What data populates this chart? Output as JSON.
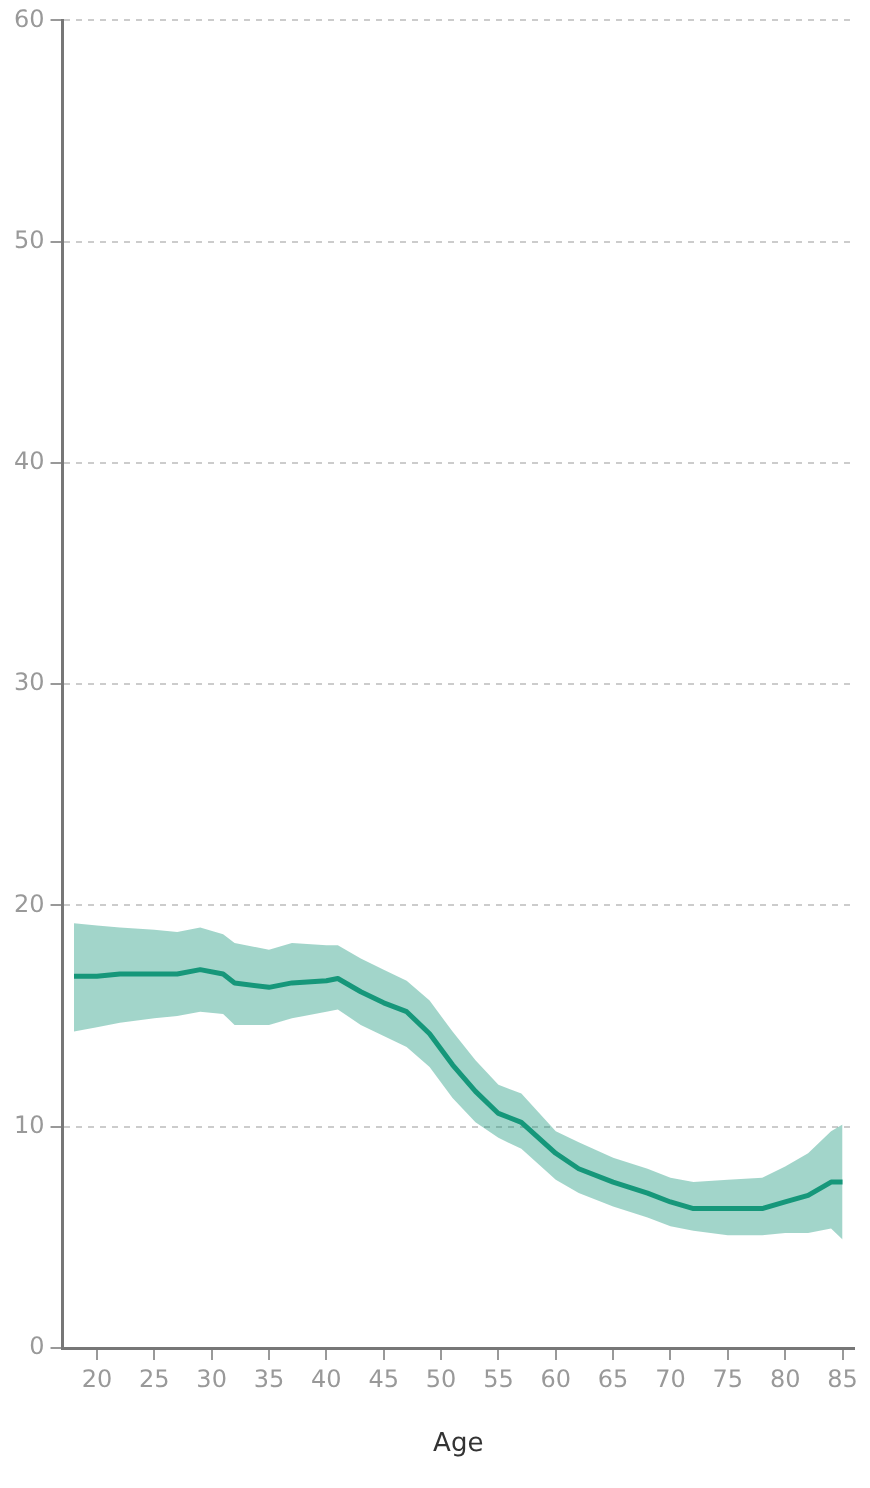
{
  "chart_data": {
    "type": "line",
    "xlabel": "Age",
    "x": [
      18,
      20,
      22,
      25,
      27,
      29,
      31,
      32,
      35,
      37,
      40,
      41,
      43,
      45,
      47,
      49,
      51,
      53,
      55,
      57,
      60,
      62,
      65,
      68,
      70,
      72,
      75,
      78,
      80,
      82,
      84,
      85
    ],
    "series": [
      {
        "color": "#16977a",
        "values": [
          16.8,
          16.8,
          16.9,
          16.9,
          16.9,
          17.1,
          16.9,
          16.5,
          16.3,
          16.5,
          16.6,
          16.7,
          16.1,
          15.6,
          15.2,
          14.2,
          12.8,
          11.6,
          10.6,
          10.2,
          8.8,
          8.1,
          7.5,
          7.0,
          6.6,
          6.3,
          6.3,
          6.3,
          6.6,
          6.9,
          7.5,
          7.5
        ],
        "lower": [
          14.3,
          14.5,
          14.7,
          14.9,
          15.0,
          15.2,
          15.1,
          14.6,
          14.6,
          14.9,
          15.2,
          15.3,
          14.6,
          14.1,
          13.6,
          12.7,
          11.3,
          10.2,
          9.5,
          9.0,
          7.6,
          7.0,
          6.4,
          5.9,
          5.5,
          5.3,
          5.1,
          5.1,
          5.2,
          5.2,
          5.4,
          4.9
        ],
        "upper": [
          19.2,
          19.1,
          19.0,
          18.9,
          18.8,
          19.0,
          18.7,
          18.3,
          18.0,
          18.3,
          18.2,
          18.2,
          17.6,
          17.1,
          16.6,
          15.7,
          14.3,
          13.0,
          11.9,
          11.5,
          9.8,
          9.3,
          8.6,
          8.1,
          7.7,
          7.5,
          7.6,
          7.7,
          8.2,
          8.8,
          9.8,
          10.1
        ]
      }
    ],
    "xlim": [
      17,
      86
    ],
    "xticks": [
      20,
      25,
      30,
      35,
      40,
      45,
      50,
      55,
      60,
      65,
      70,
      75,
      80,
      85
    ],
    "ylim": [
      0,
      60
    ],
    "yticks": [
      0,
      10,
      20,
      30,
      40,
      50,
      60
    ],
    "grid": "y",
    "legend": false,
    "marker": "none",
    "line_style": "solid"
  }
}
